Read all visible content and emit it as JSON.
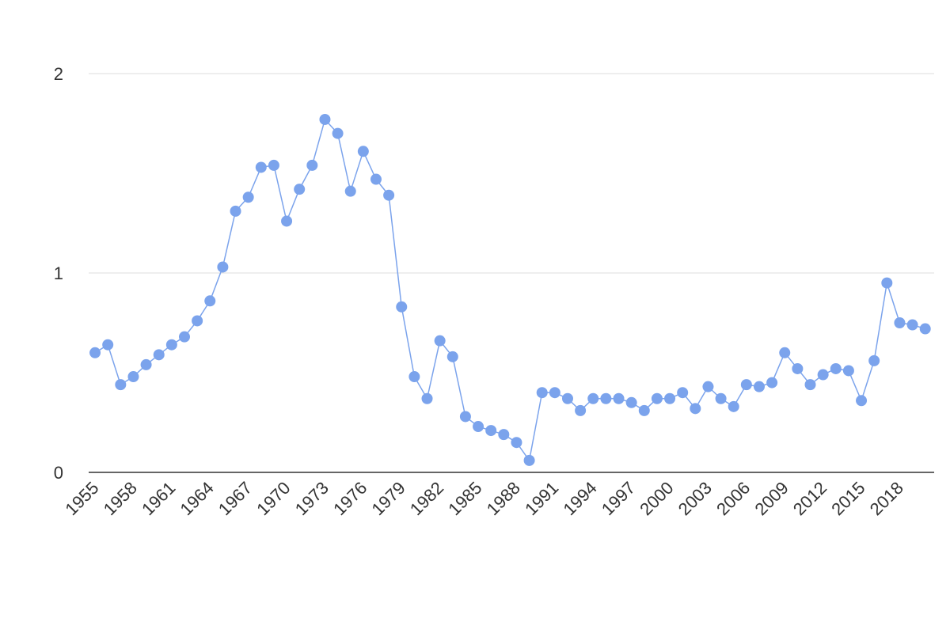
{
  "chart_data": {
    "type": "line",
    "x": [
      1955,
      1956,
      1957,
      1958,
      1959,
      1960,
      1961,
      1962,
      1963,
      1964,
      1965,
      1966,
      1967,
      1968,
      1969,
      1970,
      1971,
      1972,
      1973,
      1974,
      1975,
      1976,
      1977,
      1978,
      1979,
      1980,
      1981,
      1982,
      1983,
      1984,
      1985,
      1986,
      1987,
      1988,
      1989,
      1990,
      1991,
      1992,
      1993,
      1994,
      1995,
      1996,
      1997,
      1998,
      1999,
      2000,
      2001,
      2002,
      2003,
      2004,
      2005,
      2006,
      2007,
      2008,
      2009,
      2010,
      2011,
      2012,
      2013,
      2014,
      2015,
      2016,
      2017,
      2018,
      2019,
      2020
    ],
    "series": [
      {
        "color": "#7ba3ec",
        "values": [
          0.6,
          0.64,
          0.44,
          0.48,
          0.54,
          0.59,
          0.64,
          0.68,
          0.76,
          0.86,
          1.03,
          1.31,
          1.38,
          1.53,
          1.54,
          1.26,
          1.42,
          1.54,
          1.77,
          1.7,
          1.41,
          1.61,
          1.47,
          1.39,
          0.83,
          0.48,
          0.37,
          0.66,
          0.58,
          0.28,
          0.23,
          0.21,
          0.19,
          0.15,
          0.06,
          0.4,
          0.4,
          0.37,
          0.31,
          0.37,
          0.37,
          0.37,
          0.35,
          0.31,
          0.37,
          0.37,
          0.4,
          0.32,
          0.43,
          0.37,
          0.33,
          0.44,
          0.43,
          0.45,
          0.6,
          0.52,
          0.44,
          0.49,
          0.52,
          0.51,
          0.36,
          0.56,
          0.95,
          0.75,
          0.74,
          0.72
        ]
      }
    ],
    "xlim": [
      1954.5,
      2020.7
    ],
    "xticks": [
      1955,
      1958,
      1961,
      1964,
      1967,
      1970,
      1973,
      1976,
      1979,
      1982,
      1985,
      1988,
      1991,
      1994,
      1997,
      2000,
      2003,
      2006,
      2009,
      2012,
      2015,
      2018
    ],
    "ylim": [
      0,
      2
    ],
    "yticks": [
      0,
      1,
      2
    ],
    "grid": true
  }
}
